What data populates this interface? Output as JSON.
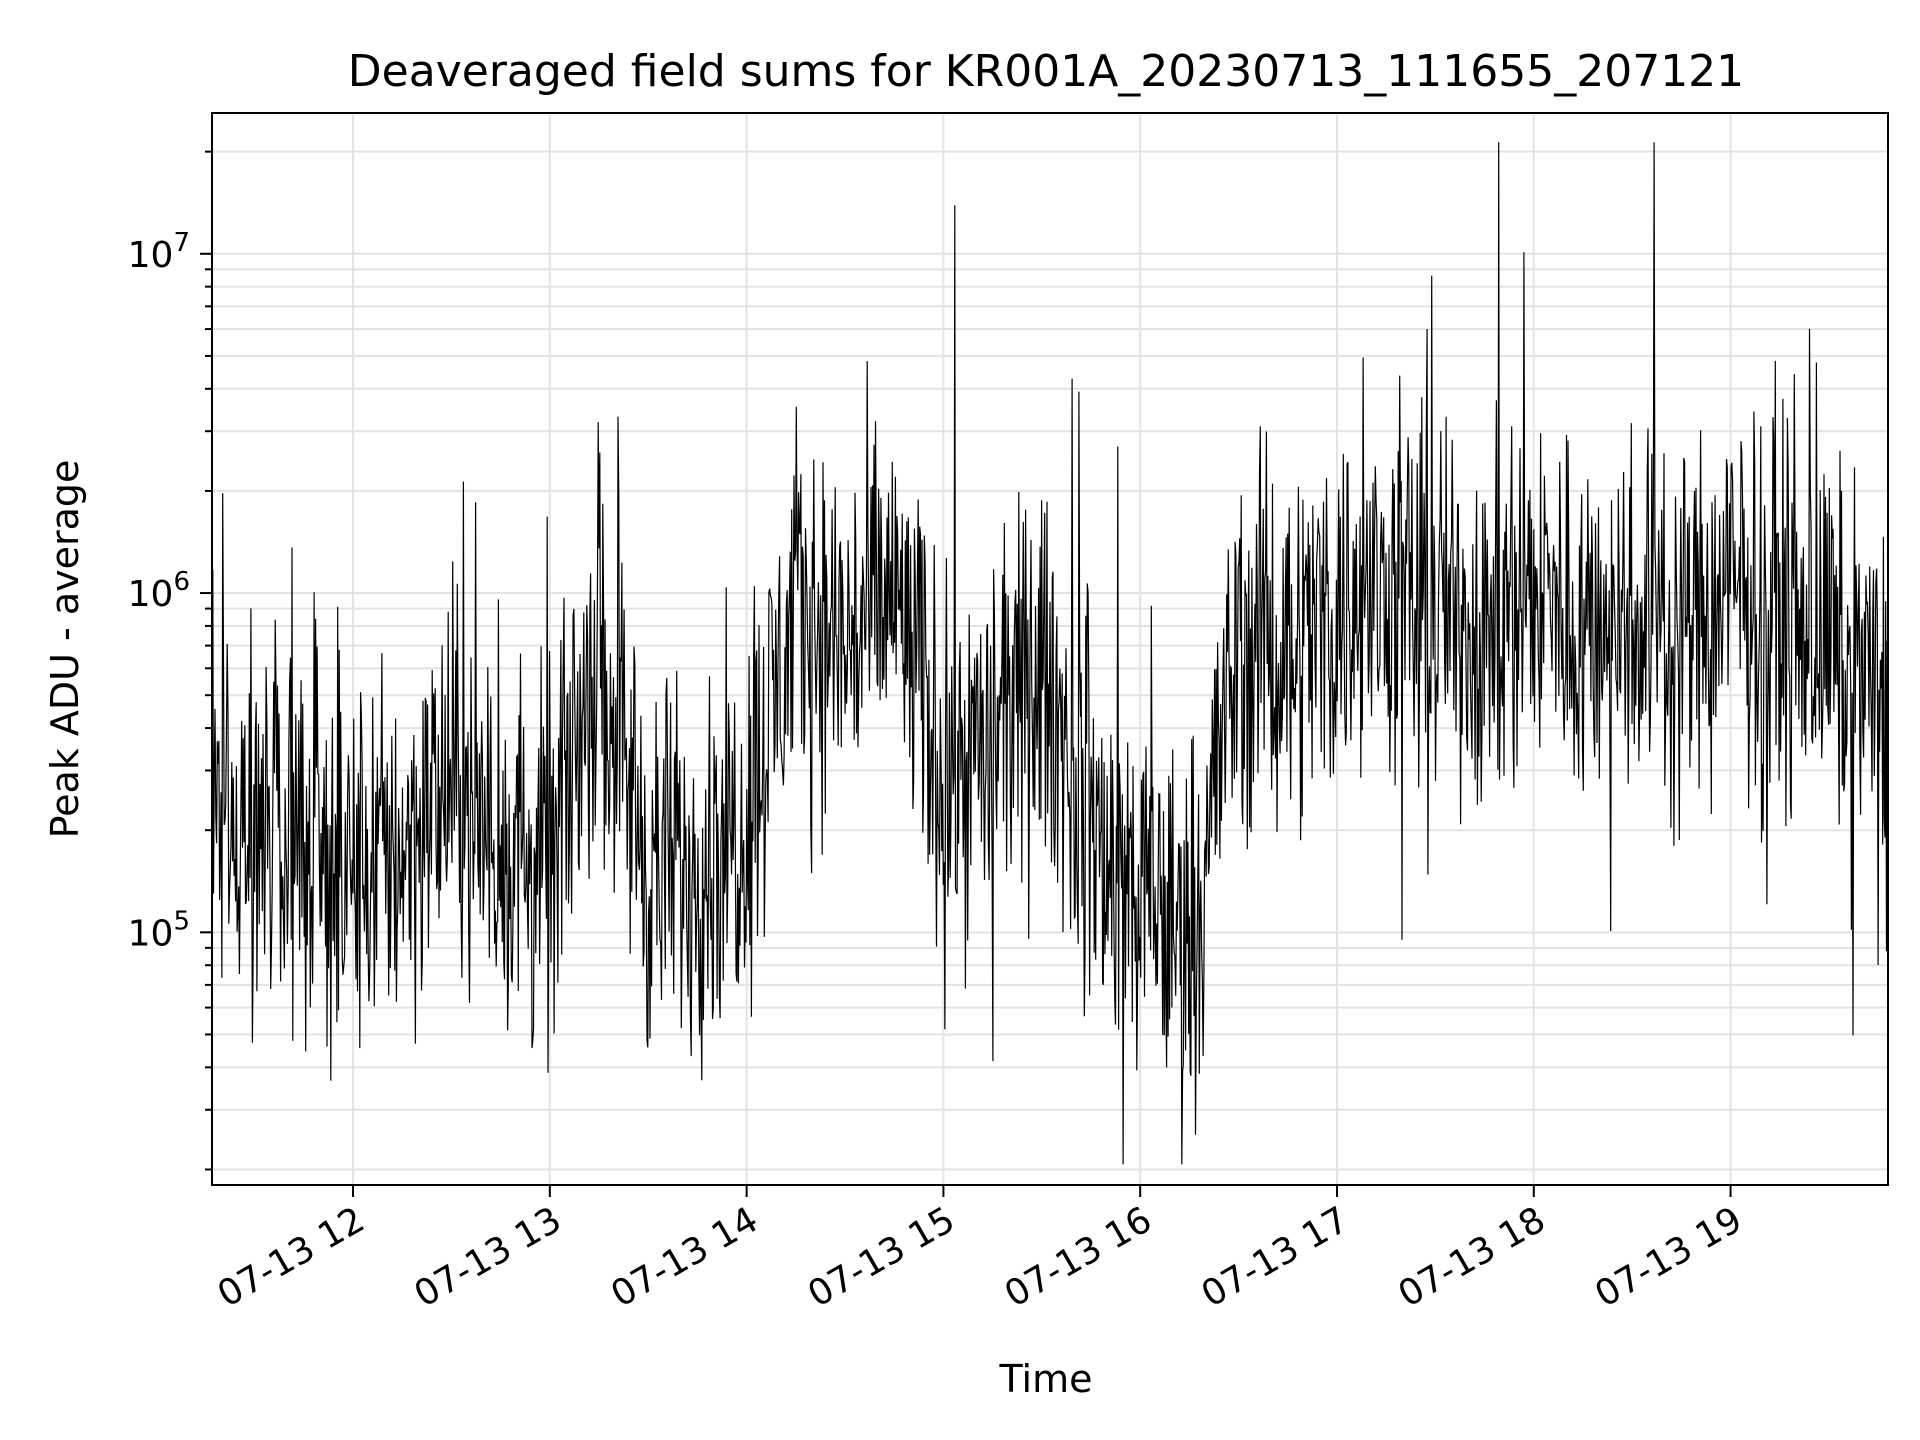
{
  "chart_data": {
    "type": "line",
    "title": "Deaveraged field sums for KR001A_20230713_111655_207121",
    "xlabel": "Time",
    "ylabel": "Peak ADU - average",
    "yscale": "log",
    "ylim": [
      18000,
      26000000
    ],
    "xlim": [
      "07-13 11:17",
      "07-13 19:48"
    ],
    "x_ticks": [
      "07-13 12",
      "07-13 13",
      "07-13 14",
      "07-13 15",
      "07-13 16",
      "07-13 17",
      "07-13 18",
      "07-13 19"
    ],
    "y_ticks": [
      {
        "base": "10",
        "exp": "5",
        "value": 100000
      },
      {
        "base": "10",
        "exp": "6",
        "value": 1000000
      },
      {
        "base": "10",
        "exp": "7",
        "value": 10000000
      }
    ],
    "grid": true,
    "line_color": "#000000",
    "series": [
      {
        "x": [
          "07-13 11:17",
          "07-13 11:30",
          "07-13 11:45",
          "07-13 12:00",
          "07-13 12:15",
          "07-13 12:30",
          "07-13 12:45",
          "07-13 13:00",
          "07-13 13:15",
          "07-13 13:30",
          "07-13 13:45",
          "07-13 14:00",
          "07-13 14:15",
          "07-13 14:30",
          "07-13 14:45",
          "07-13 15:00",
          "07-13 15:15",
          "07-13 15:30",
          "07-13 15:45",
          "07-13 16:00",
          "07-13 16:15",
          "07-13 16:30",
          "07-13 16:45",
          "07-13 17:00",
          "07-13 17:15",
          "07-13 17:30",
          "07-13 17:45",
          "07-13 18:00",
          "07-13 18:15",
          "07-13 18:30",
          "07-13 18:45",
          "07-13 19:00",
          "07-13 19:15",
          "07-13 19:30",
          "07-13 19:48"
        ],
        "values": [
          250000,
          220000,
          200000,
          150000,
          180000,
          280000,
          170000,
          150000,
          800000,
          150000,
          160000,
          220000,
          900000,
          700000,
          1000000,
          300000,
          350000,
          600000,
          200000,
          120000,
          100000,
          700000,
          700000,
          900000,
          1000000,
          900000,
          800000,
          1000000,
          800000,
          900000,
          800000,
          1000000,
          900000,
          700000,
          450000
        ]
      }
    ]
  }
}
